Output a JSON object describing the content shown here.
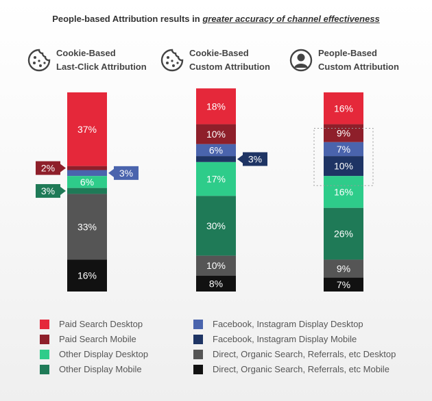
{
  "title_plain": "People-based Attribution results in ",
  "title_emph": "greater accuracy of channel effectiveness",
  "columns": [
    {
      "line1": "Cookie-Based",
      "line2": "Last-Click Attribution",
      "icon": "cookie-icon"
    },
    {
      "line1": "Cookie-Based",
      "line2": "Custom Attribution",
      "icon": "cookie-icon"
    },
    {
      "line1": "People-Based",
      "line2": "Custom Attribution",
      "icon": "person-icon"
    }
  ],
  "colors": {
    "Paid Search Desktop": "#e5283a",
    "Paid Search Mobile": "#8e1f2a",
    "Other Display Desktop": "#2ecc8a",
    "Other Display Mobile": "#1f7a57",
    "Facebook, Instagram Display Desktop": "#4a64ad",
    "Facebook, Instagram Display Mobile": "#1e3464",
    "Direct, Organic Search, Referrals, etc Desktop": "#555555",
    "Direct, Organic Search, Referrals, etc Mobile": "#111111"
  },
  "legend": [
    "Paid Search Desktop",
    "Paid Search Mobile",
    "Other Display Desktop",
    "Other Display Mobile",
    "Facebook, Instagram Display Desktop",
    "Facebook, Instagram Display Mobile",
    "Direct, Organic Search, Referrals, etc Desktop",
    "Direct, Organic Search, Referrals, etc Mobile"
  ],
  "chart_data": {
    "type": "bar",
    "stacked": true,
    "categories": [
      "Cookie-Based Last-Click Attribution",
      "Cookie-Based Custom Attribution",
      "People-Based Custom Attribution"
    ],
    "series": [
      {
        "name": "Paid Search Desktop",
        "values": [
          37,
          18,
          16
        ],
        "labels": [
          "37%",
          "18%",
          "16%"
        ]
      },
      {
        "name": "Paid Search Mobile",
        "values": [
          2,
          10,
          9
        ],
        "labels": [
          "2%",
          "10%",
          "9%"
        ]
      },
      {
        "name": "Facebook, Instagram Display Desktop",
        "values": [
          3,
          6,
          7
        ],
        "labels": [
          "3%",
          "6%",
          "7%"
        ]
      },
      {
        "name": "Facebook, Instagram Display Mobile",
        "values": [
          0,
          3,
          10
        ],
        "labels": [
          "",
          "3%",
          "10%"
        ]
      },
      {
        "name": "Other Display Desktop",
        "values": [
          6,
          17,
          16
        ],
        "labels": [
          "6%",
          "17%",
          "16%"
        ]
      },
      {
        "name": "Other Display Mobile",
        "values": [
          3,
          30,
          26
        ],
        "labels": [
          "3%",
          "30%",
          "26%"
        ]
      },
      {
        "name": "Direct, Organic Search, Referrals, etc Desktop",
        "values": [
          33,
          10,
          9
        ],
        "labels": [
          "33%",
          "10%",
          "9%"
        ]
      },
      {
        "name": "Direct, Organic Search, Referrals, etc Mobile",
        "values": [
          16,
          8,
          7
        ],
        "labels": [
          "16%",
          "8%",
          "7%"
        ]
      }
    ]
  }
}
